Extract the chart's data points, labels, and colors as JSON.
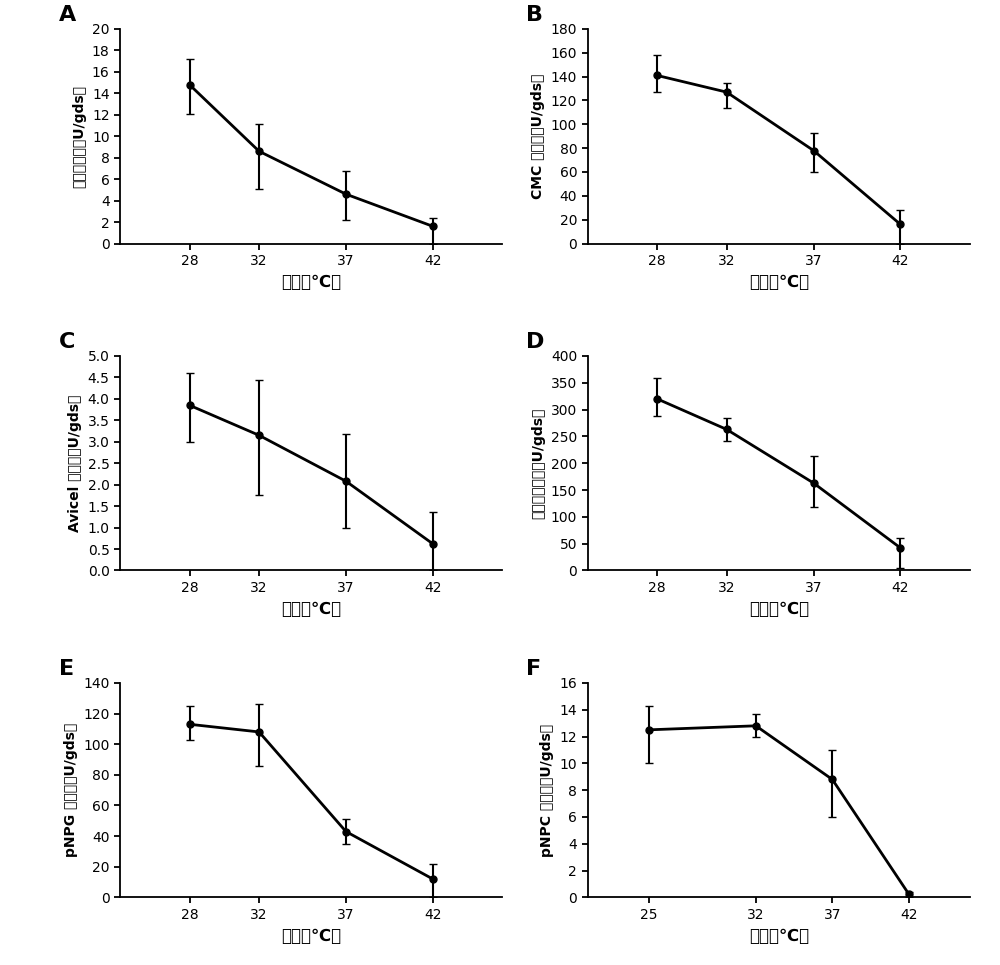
{
  "panels": [
    {
      "label": "A",
      "ylabel": "滤纸酶活力（U/gds）",
      "xlabel": "温度（℃）",
      "x": [
        28,
        32,
        37,
        42
      ],
      "y": [
        14.8,
        8.6,
        4.6,
        1.6
      ],
      "yerr_upper": [
        2.4,
        2.5,
        2.2,
        0.8
      ],
      "yerr_lower": [
        2.7,
        3.5,
        2.4,
        1.6
      ],
      "ylim": [
        0,
        20
      ],
      "yticks": [
        0,
        2,
        4,
        6,
        8,
        10,
        12,
        14,
        16,
        18,
        20
      ],
      "xticks": [
        28,
        32,
        37,
        42
      ],
      "xlim": [
        24,
        46
      ]
    },
    {
      "label": "B",
      "ylabel": "CMC 酶活力（U/gds）",
      "xlabel": "温度（℃）",
      "x": [
        28,
        32,
        37,
        42
      ],
      "y": [
        141,
        127,
        78,
        16
      ],
      "yerr_upper": [
        17,
        8,
        15,
        12
      ],
      "yerr_lower": [
        14,
        13,
        18,
        16
      ],
      "ylim": [
        0,
        180
      ],
      "yticks": [
        0,
        20,
        40,
        60,
        80,
        100,
        120,
        140,
        160,
        180
      ],
      "xticks": [
        28,
        32,
        37,
        42
      ],
      "xlim": [
        24,
        46
      ]
    },
    {
      "label": "C",
      "ylabel": "Avicel 酶活力（U/gds）",
      "xlabel": "温度（℃）",
      "x": [
        28,
        32,
        37,
        42
      ],
      "y": [
        3.85,
        3.15,
        2.08,
        0.62
      ],
      "yerr_upper": [
        0.75,
        1.3,
        1.1,
        0.75
      ],
      "yerr_lower": [
        0.85,
        1.4,
        1.1,
        0.62
      ],
      "ylim": [
        0,
        5
      ],
      "yticks": [
        0,
        0.5,
        1.0,
        1.5,
        2.0,
        2.5,
        3.0,
        3.5,
        4.0,
        4.5,
        5.0
      ],
      "xticks": [
        28,
        32,
        37,
        42
      ],
      "xlim": [
        24,
        46
      ]
    },
    {
      "label": "D",
      "ylabel": "木聚糖酶活力（U/gds）",
      "xlabel": "温度（℃）",
      "x": [
        28,
        32,
        37,
        42
      ],
      "y": [
        320,
        263,
        163,
        42
      ],
      "yerr_upper": [
        38,
        22,
        50,
        18
      ],
      "yerr_lower": [
        32,
        22,
        45,
        38
      ],
      "ylim": [
        0,
        400
      ],
      "yticks": [
        0,
        50,
        100,
        150,
        200,
        250,
        300,
        350,
        400
      ],
      "xticks": [
        28,
        32,
        37,
        42
      ],
      "xlim": [
        24,
        46
      ]
    },
    {
      "label": "E",
      "ylabel": "pNPG 酶活力（U/gds）",
      "xlabel": "温度（℃）",
      "x": [
        28,
        32,
        37,
        42
      ],
      "y": [
        113,
        108,
        43,
        12
      ],
      "yerr_upper": [
        12,
        18,
        8,
        10
      ],
      "yerr_lower": [
        10,
        22,
        8,
        12
      ],
      "ylim": [
        0,
        140
      ],
      "yticks": [
        0,
        20,
        40,
        60,
        80,
        100,
        120,
        140
      ],
      "xticks": [
        28,
        32,
        37,
        42
      ],
      "xlim": [
        24,
        46
      ]
    },
    {
      "label": "F",
      "ylabel": "pNPC 酶活力（U/gds）",
      "xlabel": "温度（℃）",
      "x": [
        25,
        32,
        37,
        42
      ],
      "y": [
        12.5,
        12.8,
        8.8,
        0.25
      ],
      "yerr_upper": [
        1.8,
        0.9,
        2.2,
        0.15
      ],
      "yerr_lower": [
        2.5,
        0.8,
        2.8,
        0.25
      ],
      "ylim": [
        0,
        16
      ],
      "yticks": [
        0,
        2,
        4,
        6,
        8,
        10,
        12,
        14,
        16
      ],
      "xticks": [
        25,
        32,
        37,
        42
      ],
      "xlim": [
        21,
        46
      ]
    }
  ],
  "line_color": "black",
  "marker": "o",
  "markersize": 5,
  "linewidth": 2.0,
  "capsize": 3,
  "elinewidth": 1.5,
  "background_color": "white"
}
